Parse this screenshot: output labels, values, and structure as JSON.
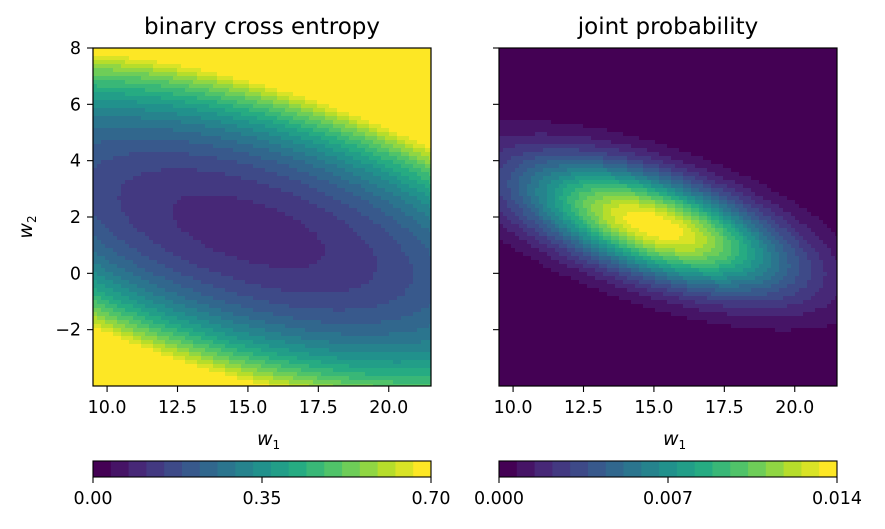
{
  "chart_data": [
    {
      "type": "heatmap",
      "variant": "filled-contour",
      "title": "binary cross entropy",
      "xlabel": "w",
      "xlabel_sub": "1",
      "ylabel": "w",
      "ylabel_sub": "2",
      "xlim": [
        9.5,
        21.5
      ],
      "ylim": [
        -4.0,
        8.0
      ],
      "xticks": [
        10.0,
        12.5,
        15.0,
        17.5,
        20.0
      ],
      "xtick_labels": [
        "10.0",
        "12.5",
        "15.0",
        "17.5",
        "20.0"
      ],
      "yticks": [
        -2,
        0,
        2,
        4,
        6,
        8
      ],
      "ytick_labels": [
        "−2",
        "0",
        "2",
        "4",
        "6",
        "8"
      ],
      "minimum_at": {
        "w1": 15.0,
        "w2": 1.5
      },
      "value_range": [
        0.0,
        0.7
      ],
      "n_levels": 19,
      "colormap": "viridis",
      "colorbar": {
        "orientation": "horizontal",
        "ticks": [
          0.0,
          0.35,
          0.7
        ],
        "tick_labels": [
          "0.00",
          "0.35",
          "0.70"
        ]
      }
    },
    {
      "type": "heatmap",
      "variant": "filled-contour",
      "title": "joint probability",
      "xlabel": "w",
      "xlabel_sub": "1",
      "xlim": [
        9.5,
        21.5
      ],
      "ylim": [
        -4.0,
        8.0
      ],
      "xticks": [
        10.0,
        12.5,
        15.0,
        17.5,
        20.0
      ],
      "xtick_labels": [
        "10.0",
        "12.5",
        "15.0",
        "17.5",
        "20.0"
      ],
      "yticks": [
        -2,
        0,
        2,
        4,
        6,
        8
      ],
      "ytick_labels_shown": false,
      "peak_at": {
        "w1": 15.0,
        "w2": 1.7
      },
      "value_range": [
        0.0,
        0.014
      ],
      "n_levels": 19,
      "colormap": "viridis",
      "colorbar": {
        "orientation": "horizontal",
        "ticks": [
          0.0,
          0.007,
          0.014
        ],
        "tick_labels": [
          "0.000",
          "0.007",
          "0.014"
        ]
      }
    }
  ],
  "colors": {
    "viridis": [
      "#440154",
      "#482475",
      "#414487",
      "#355f8d",
      "#2a788e",
      "#21918c",
      "#22a884",
      "#44bf70",
      "#7ad151",
      "#bddf26",
      "#fde725"
    ]
  }
}
